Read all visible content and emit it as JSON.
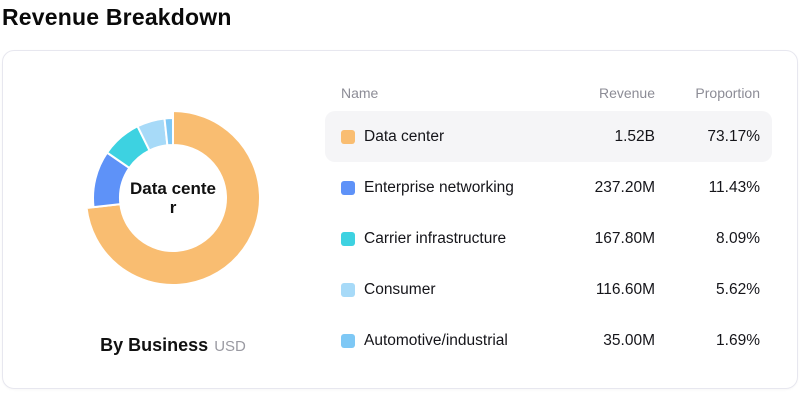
{
  "page_title": "Revenue Breakdown",
  "card": {
    "caption_title": "By Business",
    "caption_unit": "USD",
    "center_label_lines": [
      "Data cente",
      "r"
    ]
  },
  "table": {
    "headers": {
      "name": "Name",
      "revenue": "Revenue",
      "proportion": "Proportion"
    },
    "rows": [
      {
        "name": "Data center",
        "revenue": "1.52B",
        "proportion": "73.17%",
        "color": "#F9BD71",
        "highlighted": true
      },
      {
        "name": "Enterprise networking",
        "revenue": "237.20M",
        "proportion": "11.43%",
        "color": "#5E92F8",
        "highlighted": false
      },
      {
        "name": "Carrier infrastructure",
        "revenue": "167.80M",
        "proportion": "8.09%",
        "color": "#3DD2E1",
        "highlighted": false
      },
      {
        "name": "Consumer",
        "revenue": "116.60M",
        "proportion": "5.62%",
        "color": "#A7DAF8",
        "highlighted": false
      },
      {
        "name": "Automotive/industrial",
        "revenue": "35.00M",
        "proportion": "1.69%",
        "color": "#7EC8F5",
        "highlighted": false
      }
    ]
  },
  "chart_data": {
    "type": "pie",
    "donut": true,
    "title": "Revenue Breakdown",
    "subtitle": "By Business",
    "unit": "USD",
    "categories": [
      "Data center",
      "Enterprise networking",
      "Carrier infrastructure",
      "Consumer",
      "Automotive/industrial"
    ],
    "values_millions": [
      1520,
      237.2,
      167.8,
      116.6,
      35.0
    ],
    "values_percent": [
      73.17,
      11.43,
      8.09,
      5.62,
      1.69
    ],
    "revenue_labels": [
      "1.52B",
      "237.20M",
      "167.80M",
      "116.60M",
      "35.00M"
    ],
    "colors": [
      "#F9BD71",
      "#5E92F8",
      "#3DD2E1",
      "#A7DAF8",
      "#7EC8F5"
    ],
    "selected": "Data center",
    "start_angle_deg": 0,
    "direction": "clockwise",
    "center_label": "Data center",
    "legend_position": "right-table"
  }
}
